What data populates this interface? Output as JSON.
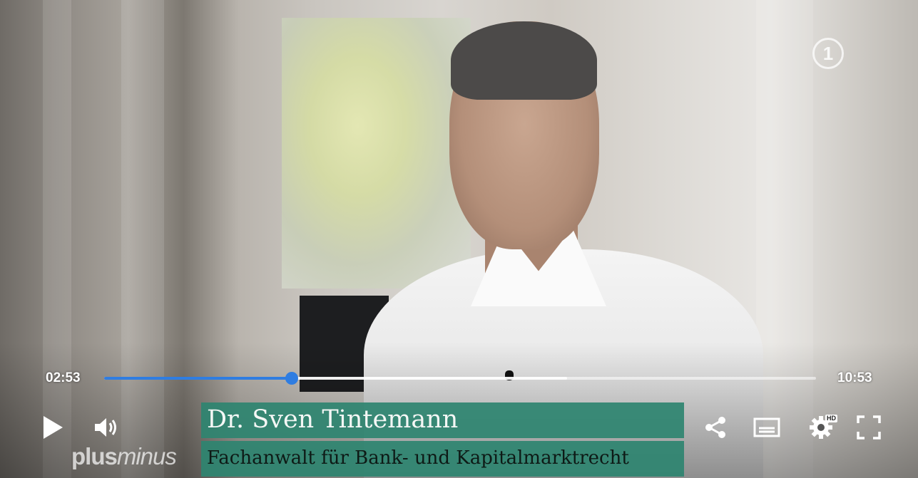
{
  "player": {
    "current_time": "02:53",
    "duration": "10:53",
    "progress_fraction": 0.264,
    "buffered_fraction": 0.65,
    "accent_color": "#2f7de1"
  },
  "overlay": {
    "channel_logo_text": "1",
    "show_logo_part1": "plus",
    "show_logo_part2": "minus"
  },
  "lower_third": {
    "name": "Dr. Sven Tintemann",
    "title": "Fachanwalt für Bank- und Kapitalmarktrecht",
    "color": "#2e8470"
  },
  "controls": {
    "play_icon": "play-icon",
    "volume_icon": "volume-icon",
    "share_icon": "share-icon",
    "subtitles_icon": "subtitles-icon",
    "settings_icon": "gear-icon",
    "settings_badge": "HD",
    "fullscreen_icon": "fullscreen-icon"
  }
}
